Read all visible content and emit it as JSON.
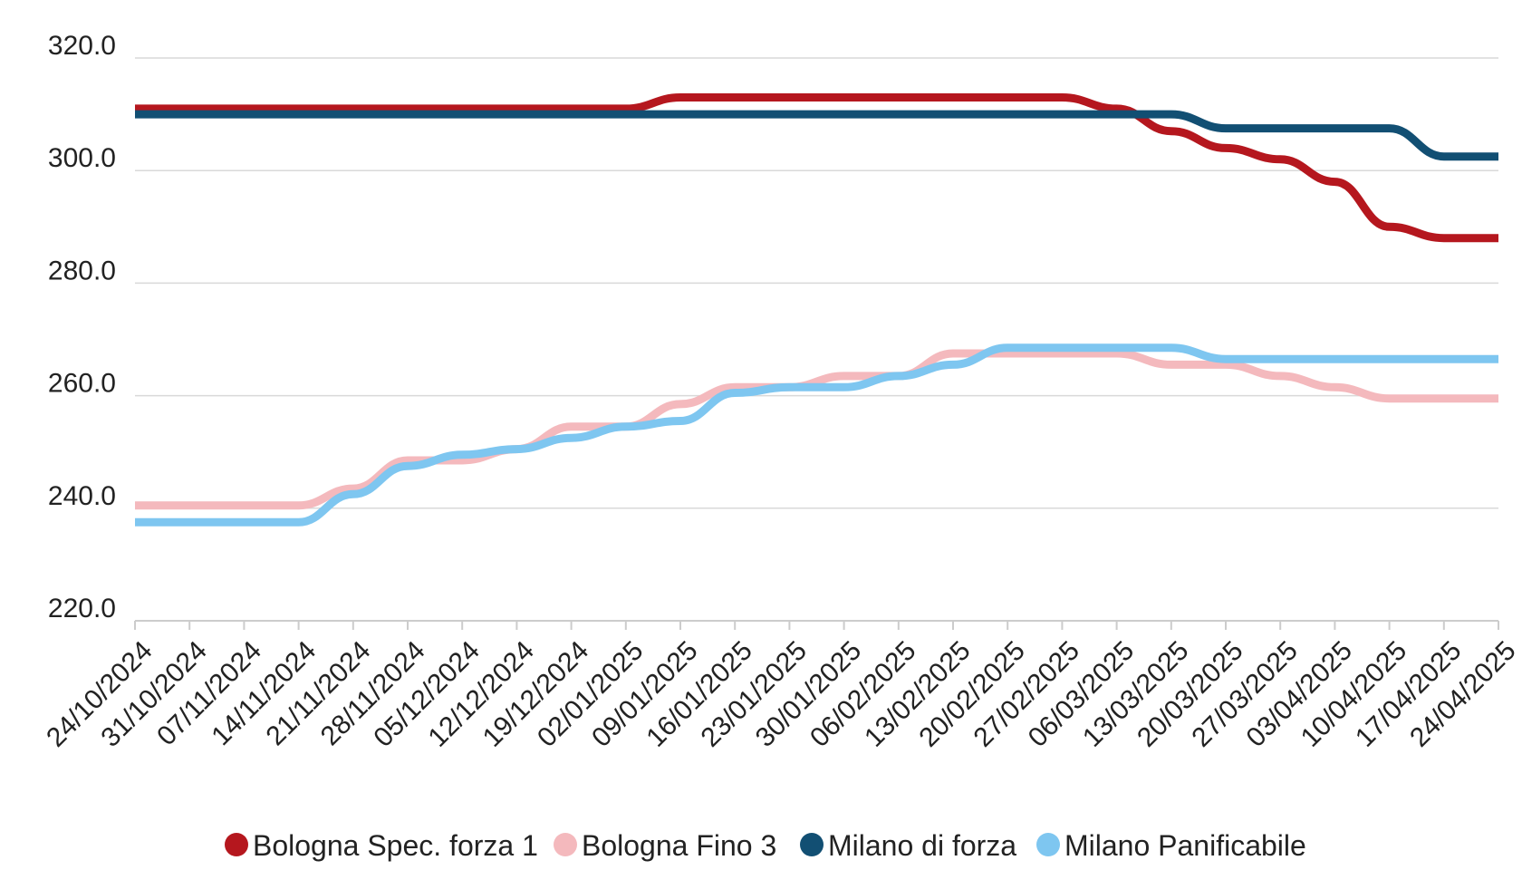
{
  "chart_data": {
    "type": "line",
    "title": "",
    "xlabel": "",
    "ylabel": "",
    "ylim": [
      220,
      320
    ],
    "yticks": [
      "320.0",
      "300.0",
      "280.0",
      "260.0",
      "240.0",
      "220.0"
    ],
    "grid": true,
    "legend_position": "bottom",
    "categories": [
      "24/10/2024",
      "31/10/2024",
      "07/11/2024",
      "14/11/2024",
      "21/11/2024",
      "28/11/2024",
      "05/12/2024",
      "12/12/2024",
      "19/12/2024",
      "02/01/2025",
      "09/01/2025",
      "16/01/2025",
      "23/01/2025",
      "30/01/2025",
      "06/02/2025",
      "13/02/2025",
      "20/02/2025",
      "27/02/2025",
      "06/03/2025",
      "13/03/2025",
      "20/03/2025",
      "27/03/2025",
      "03/04/2025",
      "10/04/2025",
      "17/04/2025",
      "24/04/2025"
    ],
    "series": [
      {
        "name": "Bologna Spec. forza 1",
        "color": "#b5171e",
        "values": [
          311,
          311,
          311,
          311,
          311,
          311,
          311,
          311,
          311,
          311,
          313,
          313,
          313,
          313,
          313,
          313,
          313,
          313,
          311,
          307,
          304,
          302,
          298,
          290,
          288,
          288
        ]
      },
      {
        "name": "Bologna Fino 3",
        "color": "#f4b9bd",
        "values": [
          240.5,
          240.5,
          240.5,
          240.5,
          243.5,
          248.5,
          248.5,
          250.5,
          254.5,
          254.5,
          258.5,
          261.5,
          261.5,
          263.5,
          263.5,
          267.5,
          267.5,
          267.5,
          267.5,
          265.5,
          265.5,
          263.5,
          261.5,
          259.5,
          259.5,
          259.5
        ]
      },
      {
        "name": "Milano di forza",
        "color": "#124f73",
        "values": [
          310,
          310,
          310,
          310,
          310,
          310,
          310,
          310,
          310,
          310,
          310,
          310,
          310,
          310,
          310,
          310,
          310,
          310,
          310,
          310,
          307.5,
          307.5,
          307.5,
          307.5,
          302.5,
          302.5
        ]
      },
      {
        "name": "Milano Panificabile",
        "color": "#7ec6f0",
        "values": [
          237.5,
          237.5,
          237.5,
          237.5,
          242.5,
          247.5,
          249.5,
          250.5,
          252.5,
          254.5,
          255.5,
          260.5,
          261.5,
          261.5,
          263.5,
          265.5,
          268.5,
          268.5,
          268.5,
          268.5,
          266.5,
          266.5,
          266.5,
          266.5,
          266.5,
          266.5
        ]
      }
    ]
  }
}
